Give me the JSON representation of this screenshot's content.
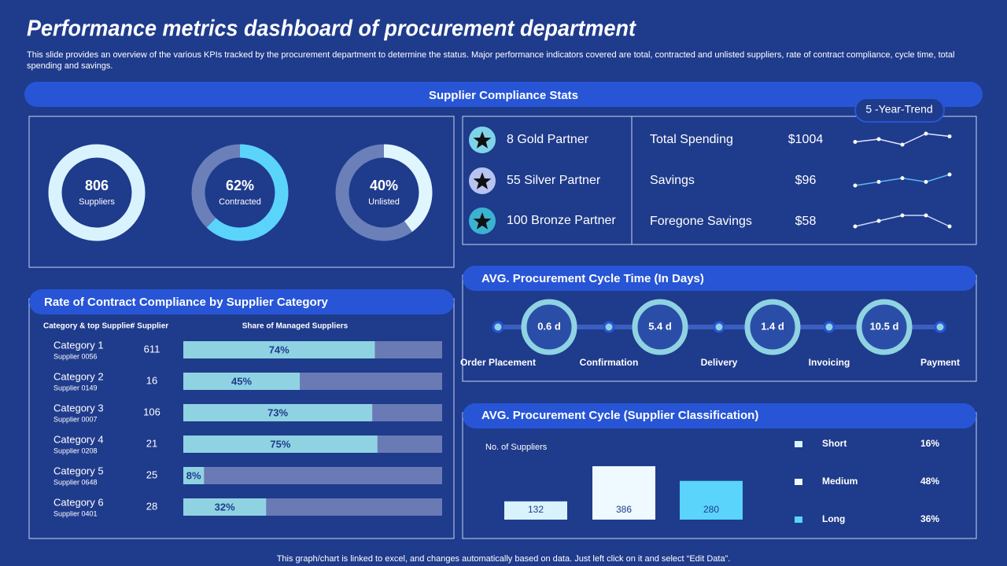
{
  "title": "Performance metrics dashboard of procurement department",
  "subtitle": "This slide provides an overview of the various KPIs tracked by the procurement department to determine the status. Major performance indicators covered are total, contracted and unlisted suppliers, rate of contract compliance, cycle time, total spending and savings.",
  "footer": "This graph/chart is linked to excel, and changes automatically based on data. Just left click on it and select “Edit Data”.",
  "compliance_header": "Supplier Compliance Stats",
  "donuts": [
    {
      "value": 806,
      "label": "Suppliers",
      "color": "#d8f3fd"
    },
    {
      "value": 62,
      "value_label": "62%",
      "label": "Contracted",
      "color": "#5ad4fb"
    },
    {
      "value": 40,
      "value_label": "40%",
      "label": "Unlisted",
      "color": "#e0f6fe"
    }
  ],
  "partners": [
    {
      "label": "8 Gold Partner",
      "color": "#7fd3e9"
    },
    {
      "label": "55 Silver Partner",
      "color": "#b7c3f0"
    },
    {
      "label": "100 Bronze Partner",
      "color": "#3bb3d0"
    }
  ],
  "spending": {
    "trend_label": "5 -Year-Trend",
    "rows": [
      {
        "name": "Total Spending",
        "value": 1004,
        "value_label": "$1004",
        "trend": [
          3,
          4,
          2,
          6,
          5
        ],
        "color": "#dfe6ff"
      },
      {
        "name": "Savings",
        "value": 96,
        "value_label": "$96",
        "trend": [
          1,
          2,
          3,
          2,
          4
        ],
        "color": "#5ab8f0"
      },
      {
        "name": "Foregone Savings",
        "value": 58,
        "value_label": "$58",
        "trend": [
          2,
          3,
          4,
          4,
          2
        ],
        "color": "#c8d8f8"
      }
    ]
  },
  "compliance": {
    "title": "Rate of Contract Compliance by Supplier Category",
    "columns": [
      "Category & top Supplier",
      "# Supplier",
      "Share of Managed Suppliers"
    ],
    "rows": [
      {
        "category": "Category 1",
        "supplier": "Supplier 0056",
        "count": 611,
        "share": 74,
        "share_label": "74%"
      },
      {
        "category": "Category 2",
        "supplier": "Supplier 0149",
        "count": 16,
        "share": 45,
        "share_label": "45%"
      },
      {
        "category": "Category 3",
        "supplier": "Supplier 0007",
        "count": 106,
        "share": 73,
        "share_label": "73%"
      },
      {
        "category": "Category 4",
        "supplier": "Supplier 0208",
        "count": 21,
        "share": 75,
        "share_label": "75%"
      },
      {
        "category": "Category 5",
        "supplier": "Supplier 0648",
        "count": 25,
        "share": 8,
        "share_label": "8%"
      },
      {
        "category": "Category 6",
        "supplier": "Supplier 0401",
        "count": 28,
        "share": 32,
        "share_label": "32%"
      }
    ]
  },
  "cycle_time": {
    "title": "AVG. Procurement Cycle Time (In Days)",
    "steps": [
      "Order Placement",
      "Confirmation",
      "Delivery",
      "Invoicing",
      "Payment"
    ],
    "values": [
      0.6,
      5.4,
      1.4,
      10.5
    ],
    "value_labels": [
      "0.6 d",
      "5.4 d",
      "1.4 d",
      "10.5 d"
    ]
  },
  "cycle": {
    "type": "bar",
    "title": "AVG. Procurement Cycle (Supplier Classification)",
    "y_label": "No. of Suppliers",
    "categories": [
      "Short",
      "Medium",
      "Long"
    ],
    "values": [
      132,
      386,
      280
    ],
    "colors": [
      "#d8f3fd",
      "#eefaff",
      "#5ad4fb"
    ],
    "shares": [
      16,
      48,
      36
    ],
    "share_labels": [
      "16%",
      "48%",
      "36%"
    ]
  }
}
